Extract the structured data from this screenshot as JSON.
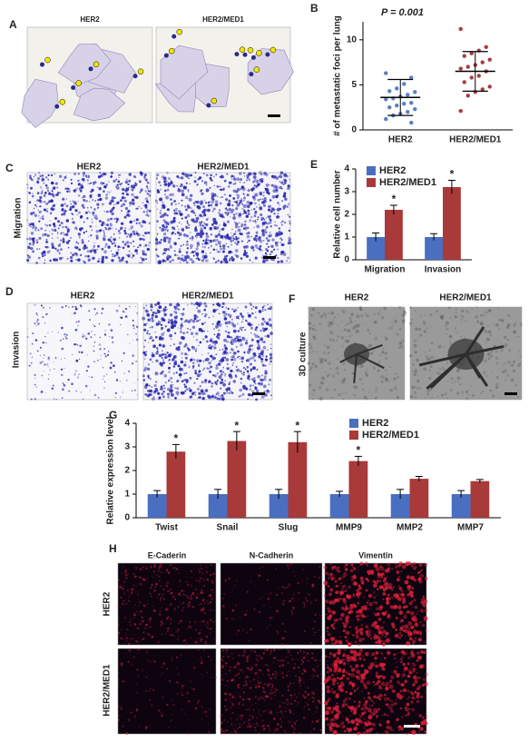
{
  "chart_data": [
    {
      "type": "strip",
      "title": "P = 0.001",
      "ylabel": "# of metastatic foci per lung",
      "categories": [
        "HER2",
        "HER2/MED1"
      ],
      "groups": [
        {
          "color": "#5b7fc4",
          "values": [
            6.3,
            5.8,
            5.1,
            4.6,
            4.3,
            4.2,
            3.9,
            3.7,
            3.5,
            3.4,
            3.0,
            2.9,
            2.7,
            2.5,
            2.3,
            2.0,
            1.8,
            1.6,
            1.2,
            0.8
          ],
          "mean": 3.6,
          "sd": 2.0
        },
        {
          "color": "#a63d40",
          "values": [
            11.2,
            9.2,
            8.8,
            8.5,
            8.2,
            7.8,
            7.5,
            7.2,
            7.0,
            6.8,
            6.5,
            6.0,
            5.8,
            5.3,
            4.8,
            4.5,
            4.2,
            3.8,
            2.1
          ],
          "mean": 6.5,
          "sd": 2.2
        }
      ],
      "ylim": [
        0,
        12
      ],
      "yticks": [
        0,
        5,
        10
      ]
    },
    {
      "type": "bar",
      "ylabel": "Relative cell number",
      "categories": [
        "Migration",
        "Invasion"
      ],
      "series": [
        {
          "name": "HER2",
          "color": "#4a6fc1",
          "values": [
            1,
            1
          ],
          "errors": [
            0.18,
            0.15
          ],
          "markers": [
            null,
            null
          ]
        },
        {
          "name": "HER2/MED1",
          "color": "#a83a3a",
          "values": [
            2.2,
            3.2
          ],
          "errors": [
            0.2,
            0.3
          ],
          "markers": [
            "*",
            "*"
          ]
        }
      ],
      "ylim": [
        0,
        4
      ],
      "yticks": [
        0,
        1,
        2,
        3,
        4
      ]
    },
    {
      "type": "bar",
      "ylabel": "Relative expression level",
      "categories": [
        "Twist",
        "Snail",
        "Slug",
        "MMP9",
        "MMP2",
        "MMP7"
      ],
      "series": [
        {
          "name": "HER2",
          "color": "#4a6fc1",
          "values": [
            1,
            1,
            1,
            1,
            1,
            1
          ],
          "errors": [
            0.15,
            0.2,
            0.2,
            0.12,
            0.2,
            0.15
          ],
          "markers": [
            null,
            null,
            null,
            null,
            null,
            null
          ]
        },
        {
          "name": "HER2/MED1",
          "color": "#a83a3a",
          "values": [
            2.8,
            3.25,
            3.2,
            2.4,
            1.65,
            1.55
          ],
          "errors": [
            0.3,
            0.4,
            0.45,
            0.2,
            0.1,
            0.07
          ],
          "markers": [
            "*",
            "*",
            "*",
            "*",
            null,
            null
          ]
        }
      ],
      "ylim": [
        0,
        4
      ],
      "yticks": [
        0,
        1,
        2,
        3,
        4
      ]
    }
  ],
  "panels": {
    "letters": [
      "A",
      "B",
      "C",
      "D",
      "E",
      "F",
      "G",
      "H"
    ],
    "a_titles": [
      "HER2",
      "HER2/MED1"
    ],
    "c_titles": [
      "HER2",
      "HER2/MED1"
    ],
    "c_side": "Migration",
    "d_titles": [
      "HER2",
      "HER2/MED1"
    ],
    "d_side": "Invasion",
    "f_titles": [
      "HER2",
      "HER2/MED1"
    ],
    "f_side": "3D culture",
    "h_columns": [
      "E-Caderin",
      "N-Cadherin",
      "Vimentin"
    ],
    "h_rows": [
      "HER2",
      "HER2/MED1"
    ]
  }
}
